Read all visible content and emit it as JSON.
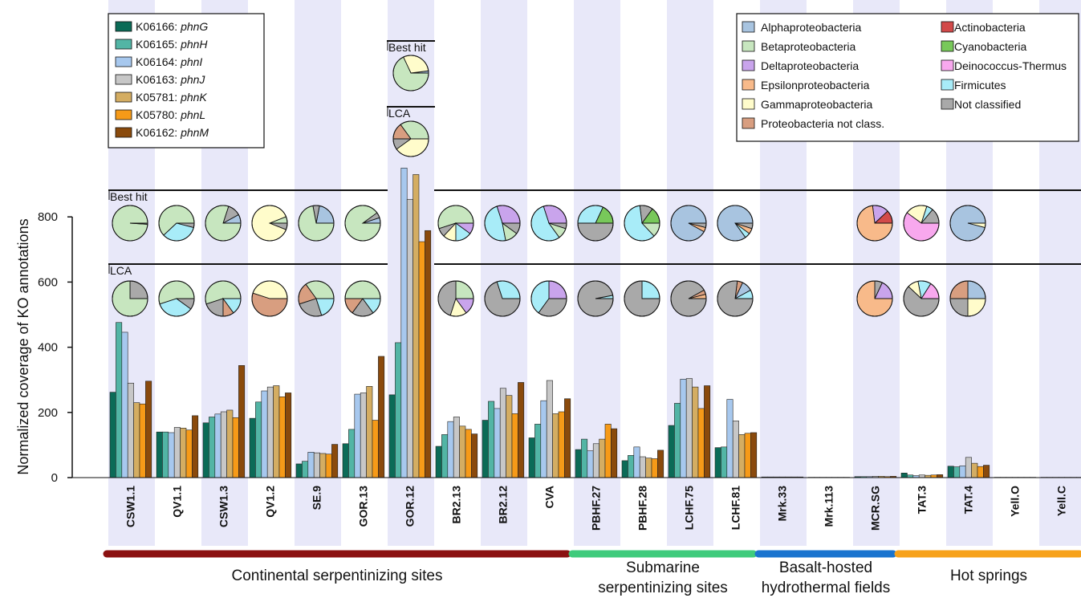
{
  "chart_data": {
    "type": "bar",
    "ylabel": "Normalized coverage of KO annotations",
    "yticks": [
      0,
      200,
      400,
      600,
      800
    ],
    "ylim": [
      0,
      960
    ],
    "categories": [
      "CSW1.1",
      "QV1.1",
      "CSW1.3",
      "QV1.2",
      "SE.9",
      "GOR.13",
      "GOR.12",
      "BR2.13",
      "BR2.12",
      "CVA",
      "PBHF.27",
      "PBHF.28",
      "LCHF.75",
      "LCHF.81",
      "Mrk.33",
      "Mrk.113",
      "MCR.SG",
      "TAT.3",
      "TAT.4",
      "Yell.O",
      "Yell.C"
    ],
    "series": [
      {
        "ko": "K06166",
        "gene": "phnG",
        "color": "#0b6b57",
        "values": [
          262,
          140,
          168,
          182,
          42,
          104,
          254,
          96,
          176,
          122,
          86,
          52,
          160,
          92,
          2,
          1,
          3,
          14,
          35,
          1,
          1
        ]
      },
      {
        "ko": "K06165",
        "gene": "phnH",
        "color": "#52b5a5",
        "values": [
          476,
          140,
          186,
          232,
          50,
          148,
          414,
          132,
          234,
          164,
          118,
          68,
          228,
          94,
          2,
          1,
          3,
          8,
          33,
          1,
          1
        ]
      },
      {
        "ko": "K06164",
        "gene": "phnI",
        "color": "#a7c8ee",
        "values": [
          446,
          138,
          195,
          266,
          78,
          256,
          950,
          172,
          212,
          236,
          82,
          94,
          302,
          240,
          2,
          1,
          3,
          6,
          36,
          1,
          1
        ]
      },
      {
        "ko": "K06163",
        "gene": "phnJ",
        "color": "#c7c7c7",
        "values": [
          290,
          154,
          202,
          278,
          76,
          260,
          854,
          186,
          274,
          298,
          104,
          64,
          304,
          174,
          2,
          1,
          4,
          8,
          62,
          1,
          1
        ]
      },
      {
        "ko": "K05781",
        "gene": "phnK",
        "color": "#d4ad62",
        "values": [
          230,
          152,
          207,
          282,
          74,
          280,
          930,
          158,
          252,
          196,
          118,
          60,
          278,
          132,
          2,
          1,
          4,
          7,
          44,
          1,
          1
        ]
      },
      {
        "ko": "K05780",
        "gene": "phnL",
        "color": "#f69a18",
        "values": [
          226,
          146,
          184,
          248,
          72,
          176,
          724,
          148,
          196,
          202,
          164,
          58,
          212,
          136,
          2,
          1,
          3,
          8,
          34,
          1,
          1
        ]
      },
      {
        "ko": "K06162",
        "gene": "phnM",
        "color": "#8a4a0c",
        "values": [
          296,
          190,
          344,
          260,
          102,
          372,
          758,
          134,
          292,
          242,
          150,
          84,
          282,
          138,
          2,
          1,
          4,
          9,
          38,
          1,
          1
        ]
      }
    ],
    "groups": [
      {
        "label": "Continental serpentinizing sites",
        "color": "#8b1111",
        "from": 0,
        "to": 9
      },
      {
        "label": "Submarine serpentinizing sites",
        "color": "#3fcb7c",
        "from": 10,
        "to": 13
      },
      {
        "label": "Basalt-hosted hydrothermal fields",
        "color": "#1a74cf",
        "from": 14,
        "to": 16
      },
      {
        "label": "Hot springs",
        "color": "#f7a21b",
        "from": 17,
        "to": 20
      }
    ],
    "taxa": [
      {
        "name": "Alphaproteobacteria",
        "color": "#a8c4e0"
      },
      {
        "name": "Betaproteobacteria",
        "color": "#c7e6bf"
      },
      {
        "name": "Deltaproteobacteria",
        "color": "#c9a4ec"
      },
      {
        "name": "Epsilonproteobacteria",
        "color": "#f8ba8a"
      },
      {
        "name": "Gammaproteobacteria",
        "color": "#fffccb"
      },
      {
        "name": "Proteobacteria not class.",
        "color": "#d89e80"
      },
      {
        "name": "Actinobacteria",
        "color": "#d24a4a"
      },
      {
        "name": "Cyanobacteria",
        "color": "#78c85a"
      },
      {
        "name": "Deinococcus-Thermus",
        "color": "#f8a8ee"
      },
      {
        "name": "Firmicutes",
        "color": "#a8ecf8"
      },
      {
        "name": "Not classified",
        "color": "#a9a9a9"
      }
    ],
    "pie_methods": [
      "Best hit",
      "LCA"
    ],
    "pies": {
      "best_hit": [
        {
          "sample": "CSW1.1",
          "slices": [
            [
              "Betaproteobacteria",
              99
            ],
            [
              "Not classified",
              1
            ]
          ]
        },
        {
          "sample": "QV1.1",
          "slices": [
            [
              "Betaproteobacteria",
              62
            ],
            [
              "Firmicutes",
              34
            ],
            [
              "Not classified",
              4
            ]
          ]
        },
        {
          "sample": "CSW1.3",
          "slices": [
            [
              "Alphaproteobacteria",
              8
            ],
            [
              "Not classified",
              12
            ],
            [
              "Betaproteobacteria",
              80
            ]
          ]
        },
        {
          "sample": "QV1.2",
          "slices": [
            [
              "Betaproteobacteria",
              6
            ],
            [
              "Gammaproteobacteria",
              88
            ],
            [
              "Not classified",
              6
            ]
          ]
        },
        {
          "sample": "SE.9",
          "slices": [
            [
              "Alphaproteobacteria",
              22
            ],
            [
              "Not classified",
              6
            ],
            [
              "Betaproteobacteria",
              72
            ]
          ]
        },
        {
          "sample": "GOR.13",
          "slices": [
            [
              "Alphaproteobacteria",
              5
            ],
            [
              "Not classified",
              5
            ],
            [
              "Betaproteobacteria",
              90
            ]
          ]
        },
        {
          "sample": "GOR.12",
          "slices": [
            [
              "Alphaproteobacteria",
              2
            ],
            [
              "Gammaproteobacteria",
              30
            ],
            [
              "Betaproteobacteria",
              68
            ]
          ]
        },
        {
          "sample": "BR2.13",
          "slices": [
            [
              "Betaproteobacteria",
              55
            ],
            [
              "Not classified",
              8
            ],
            [
              "Gammaproteobacteria",
              12
            ],
            [
              "Firmicutes",
              15
            ],
            [
              "Deltaproteobacteria",
              10
            ]
          ]
        },
        {
          "sample": "BR2.12",
          "slices": [
            [
              "Deltaproteobacteria",
              30
            ],
            [
              "Firmicutes",
              48
            ],
            [
              "Betaproteobacteria",
              12
            ],
            [
              "Not classified",
              10
            ]
          ]
        },
        {
          "sample": "CVA",
          "slices": [
            [
              "Deltaproteobacteria",
              30
            ],
            [
              "Firmicutes",
              55
            ],
            [
              "Betaproteobacteria",
              10
            ],
            [
              "Not classified",
              5
            ]
          ]
        },
        {
          "sample": "PBHF.27",
          "slices": [
            [
              "Cyanobacteria",
              18
            ],
            [
              "Firmicutes",
              32
            ],
            [
              "Not classified",
              50
            ]
          ]
        },
        {
          "sample": "PBHF.28",
          "slices": [
            [
              "Cyanobacteria",
              15
            ],
            [
              "Not classified",
              12
            ],
            [
              "Firmicutes",
              60
            ],
            [
              "Betaproteobacteria",
              13
            ]
          ]
        },
        {
          "sample": "LCHF.75",
          "slices": [
            [
              "Alphaproteobacteria",
              92
            ],
            [
              "Epsilonproteobacteria",
              4
            ],
            [
              "Not classified",
              4
            ]
          ]
        },
        {
          "sample": "LCHF.81",
          "slices": [
            [
              "Alphaproteobacteria",
              85
            ],
            [
              "Firmicutes",
              5
            ],
            [
              "Epsilonproteobacteria",
              5
            ],
            [
              "Not classified",
              5
            ]
          ]
        },
        {
          "sample": "MCR.SG",
          "slices": [
            [
              "Actinobacteria",
              12
            ],
            [
              "Deltaproteobacteria",
              15
            ],
            [
              "Epsilonproteobacteria",
              73
            ]
          ]
        },
        {
          "sample": "TAT.3",
          "slices": [
            [
              "Not classified",
              14
            ],
            [
              "Firmicutes",
              6
            ],
            [
              "Gammaproteobacteria",
              20
            ],
            [
              "Deinococcus-Thermus",
              60
            ]
          ]
        },
        {
          "sample": "TAT.4",
          "slices": [
            [
              "Alphaproteobacteria",
              96
            ],
            [
              "Gammaproteobacteria",
              4
            ]
          ]
        }
      ],
      "lca": [
        {
          "sample": "CSW1.1",
          "slices": [
            [
              "Not classified",
              25
            ],
            [
              "Betaproteobacteria",
              75
            ]
          ]
        },
        {
          "sample": "QV1.1",
          "slices": [
            [
              "Betaproteobacteria",
              55
            ],
            [
              "Firmicutes",
              35
            ],
            [
              "Not classified",
              10
            ]
          ]
        },
        {
          "sample": "CSW1.3",
          "slices": [
            [
              "Betaproteobacteria",
              55
            ],
            [
              "Not classified",
              20
            ],
            [
              "Proteobacteria not class.",
              10
            ],
            [
              "Firmicutes",
              15
            ]
          ]
        },
        {
          "sample": "QV1.2",
          "slices": [
            [
              "Gammaproteobacteria",
              45
            ],
            [
              "Proteobacteria not class.",
              55
            ]
          ]
        },
        {
          "sample": "SE.9",
          "slices": [
            [
              "Betaproteobacteria",
              35
            ],
            [
              "Proteobacteria not class.",
              20
            ],
            [
              "Not classified",
              25
            ],
            [
              "Firmicutes",
              20
            ]
          ]
        },
        {
          "sample": "GOR.13",
          "slices": [
            [
              "Betaproteobacteria",
              50
            ],
            [
              "Proteobacteria not class.",
              15
            ],
            [
              "Not classified",
              20
            ],
            [
              "Firmicutes",
              15
            ]
          ]
        },
        {
          "sample": "GOR.12",
          "slices": [
            [
              "Betaproteobacteria",
              35
            ],
            [
              "Proteobacteria not class.",
              15
            ],
            [
              "Not classified",
              10
            ],
            [
              "Gammaproteobacteria",
              40
            ]
          ]
        },
        {
          "sample": "BR2.13",
          "slices": [
            [
              "Betaproteobacteria",
              25
            ],
            [
              "Not classified",
              45
            ],
            [
              "Gammaproteobacteria",
              15
            ],
            [
              "Deltaproteobacteria",
              15
            ]
          ]
        },
        {
          "sample": "BR2.12",
          "slices": [
            [
              "Firmicutes",
              30
            ],
            [
              "Not classified",
              70
            ]
          ]
        },
        {
          "sample": "CVA",
          "slices": [
            [
              "Deltaproteobacteria",
              25
            ],
            [
              "Firmicutes",
              40
            ],
            [
              "Not classified",
              35
            ]
          ]
        },
        {
          "sample": "PBHF.27",
          "slices": [
            [
              "Firmicutes",
              3
            ],
            [
              "Not classified",
              97
            ]
          ]
        },
        {
          "sample": "PBHF.28",
          "slices": [
            [
              "Firmicutes",
              25
            ],
            [
              "Not classified",
              75
            ]
          ]
        },
        {
          "sample": "LCHF.75",
          "slices": [
            [
              "Epsilonproteobacteria",
              4
            ],
            [
              "Proteobacteria not class.",
              4
            ],
            [
              "Not classified",
              92
            ]
          ]
        },
        {
          "sample": "LCHF.81",
          "slices": [
            [
              "Firmicutes",
              8
            ],
            [
              "Alphaproteobacteria",
              10
            ],
            [
              "Proteobacteria not class.",
              5
            ],
            [
              "Not classified",
              77
            ]
          ]
        },
        {
          "sample": "MCR.SG",
          "slices": [
            [
              "Deltaproteobacteria",
              18
            ],
            [
              "Not classified",
              7
            ],
            [
              "Epsilonproteobacteria",
              75
            ]
          ]
        },
        {
          "sample": "TAT.3",
          "slices": [
            [
              "Deinococcus-Thermus",
              16
            ],
            [
              "Firmicutes",
              12
            ],
            [
              "Gammaproteobacteria",
              10
            ],
            [
              "Not classified",
              62
            ]
          ]
        },
        {
          "sample": "TAT.4",
          "slices": [
            [
              "Alphaproteobacteria",
              25
            ],
            [
              "Proteobacteria not class.",
              25
            ],
            [
              "Not classified",
              25
            ],
            [
              "Gammaproteobacteria",
              25
            ]
          ]
        }
      ]
    }
  }
}
